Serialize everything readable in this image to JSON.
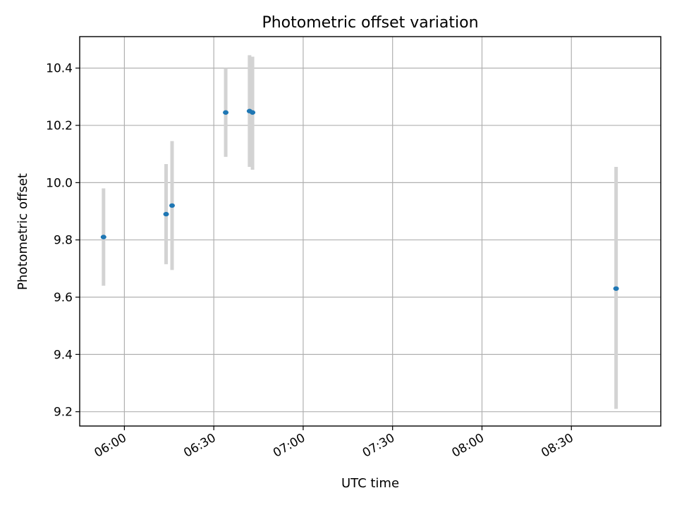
{
  "chart_data": {
    "type": "scatter",
    "title": "Photometric offset variation",
    "xlabel": "UTC time",
    "ylabel": "Photometric offset",
    "x_axis_type": "time",
    "xlim": [
      "05:45",
      "09:00"
    ],
    "ylim": [
      9.15,
      10.51
    ],
    "xticks": [
      "06:00",
      "06:30",
      "07:00",
      "07:30",
      "08:00",
      "08:30"
    ],
    "yticks": [
      "9.2",
      "9.4",
      "9.6",
      "9.8",
      "10.0",
      "10.2",
      "10.4"
    ],
    "xtick_rotation_deg": 30,
    "grid": true,
    "legend": false,
    "marker_color": "#1f77b4",
    "errorbar_color": "#d3d3d3",
    "series": [
      {
        "points": [
          {
            "x": "05:53",
            "y": 9.81,
            "yerr_low": 9.64,
            "yerr_high": 9.98
          },
          {
            "x": "06:14",
            "y": 9.89,
            "yerr_low": 9.715,
            "yerr_high": 10.065
          },
          {
            "x": "06:16",
            "y": 9.92,
            "yerr_low": 9.695,
            "yerr_high": 10.145
          },
          {
            "x": "06:34",
            "y": 10.245,
            "yerr_low": 10.09,
            "yerr_high": 10.4
          },
          {
            "x": "06:42",
            "y": 10.25,
            "yerr_low": 10.055,
            "yerr_high": 10.445
          },
          {
            "x": "06:43",
            "y": 10.245,
            "yerr_low": 10.045,
            "yerr_high": 10.44
          },
          {
            "x": "08:45",
            "y": 9.63,
            "yerr_low": 9.21,
            "yerr_high": 10.055
          }
        ]
      }
    ]
  }
}
